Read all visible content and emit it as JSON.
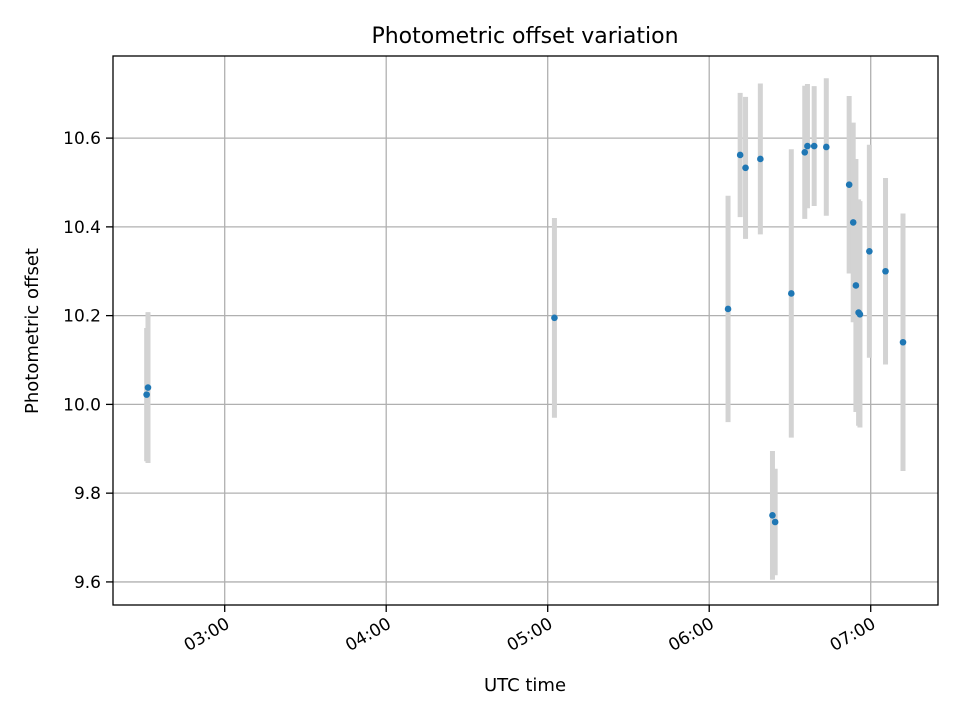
{
  "chart_data": {
    "type": "scatter",
    "title": "Photometric offset variation",
    "xlabel": "UTC time",
    "ylabel": "Photometric offset",
    "x_ticks": [
      "03:00",
      "04:00",
      "05:00",
      "06:00",
      "07:00"
    ],
    "y_ticks": [
      "9.6",
      "9.8",
      "10.0",
      "10.2",
      "10.4",
      "10.6"
    ],
    "xlim": [
      "02:18:30",
      "07:25:00"
    ],
    "ylim": [
      9.548,
      10.785
    ],
    "grid": true,
    "colors": {
      "point": "#1f77b4",
      "errorbar": "#d3d3d3",
      "grid": "#b0b0b0"
    },
    "points": [
      {
        "t": "02:31:00",
        "y": 10.022,
        "err": 0.15
      },
      {
        "t": "02:31:30",
        "y": 10.038,
        "err": 0.17
      },
      {
        "t": "05:02:30",
        "y": 10.195,
        "err": 0.225
      },
      {
        "t": "06:07:00",
        "y": 10.215,
        "err": 0.255
      },
      {
        "t": "06:11:30",
        "y": 10.562,
        "err": 0.14
      },
      {
        "t": "06:13:30",
        "y": 10.533,
        "err": 0.16
      },
      {
        "t": "06:19:00",
        "y": 10.553,
        "err": 0.17
      },
      {
        "t": "06:23:30",
        "y": 9.75,
        "err": 0.145
      },
      {
        "t": "06:24:30",
        "y": 9.735,
        "err": 0.12
      },
      {
        "t": "06:30:30",
        "y": 10.25,
        "err": 0.325
      },
      {
        "t": "06:35:30",
        "y": 10.568,
        "err": 0.15
      },
      {
        "t": "06:36:30",
        "y": 10.582,
        "err": 0.14
      },
      {
        "t": "06:39:00",
        "y": 10.582,
        "err": 0.135
      },
      {
        "t": "06:43:30",
        "y": 10.58,
        "err": 0.155
      },
      {
        "t": "06:52:00",
        "y": 10.495,
        "err": 0.2
      },
      {
        "t": "06:53:30",
        "y": 10.41,
        "err": 0.225
      },
      {
        "t": "06:54:30",
        "y": 10.268,
        "err": 0.285
      },
      {
        "t": "06:55:30",
        "y": 10.207,
        "err": 0.255
      },
      {
        "t": "06:56:00",
        "y": 10.203,
        "err": 0.255
      },
      {
        "t": "06:59:30",
        "y": 10.345,
        "err": 0.24
      },
      {
        "t": "07:05:30",
        "y": 10.3,
        "err": 0.21
      },
      {
        "t": "07:12:00",
        "y": 10.14,
        "err": 0.29
      }
    ]
  }
}
